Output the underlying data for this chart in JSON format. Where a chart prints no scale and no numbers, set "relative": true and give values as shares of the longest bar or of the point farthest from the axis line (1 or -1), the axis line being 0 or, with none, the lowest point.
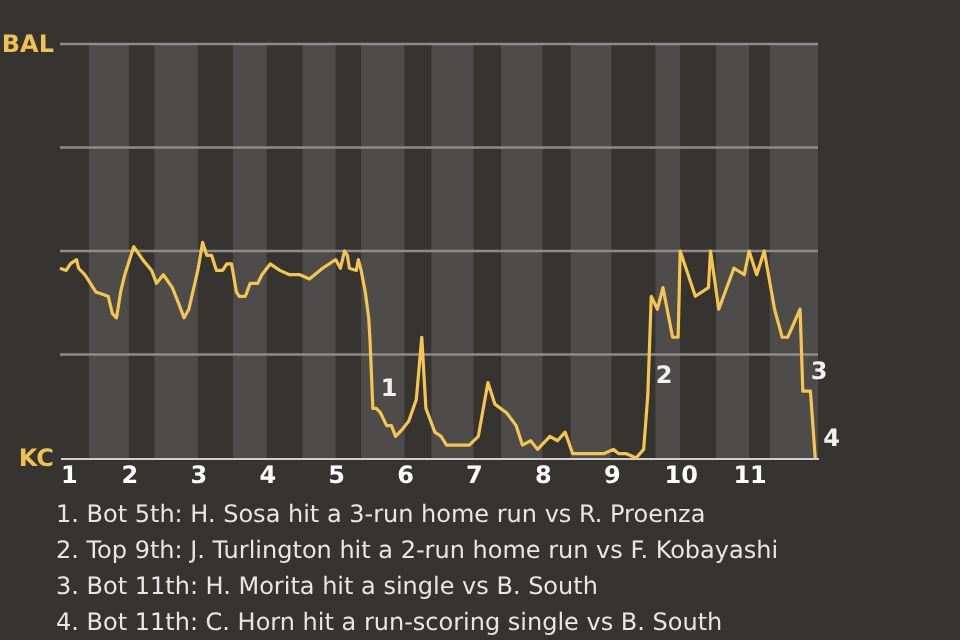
{
  "chart_data": {
    "type": "line",
    "relative": true,
    "xlim": [
      1,
      12
    ],
    "xticks": [
      1,
      2,
      3,
      4,
      5,
      6,
      7,
      8,
      9,
      10,
      11
    ],
    "ref_lines": [
      {
        "axis": "y",
        "value": 0.48,
        "color": "#8c8c8c"
      },
      {
        "axis": "y",
        "value": 0.96,
        "color": "#8c8c8c"
      },
      {
        "axis": "y",
        "value": 1.44,
        "color": "#8c8c8c"
      },
      {
        "axis": "y",
        "value": 1.92,
        "color": "#8c8c8c"
      }
    ],
    "marker": "none",
    "line_style": "solid",
    "series": [
      {
        "color": "#f5c451",
        "x": [
          1.0,
          1.09,
          1.15,
          1.24,
          1.27,
          1.36,
          1.52,
          1.7,
          1.76,
          1.82,
          1.88,
          1.94,
          2.07,
          2.2,
          2.33,
          2.4,
          2.5,
          2.63,
          2.73,
          2.8,
          2.87,
          3.0,
          3.07,
          3.13,
          3.2,
          3.27,
          3.36,
          3.42,
          3.49,
          3.56,
          3.6,
          3.69,
          3.76,
          3.87,
          3.93,
          4.05,
          4.19,
          4.33,
          4.48,
          4.62,
          4.81,
          5.0,
          5.07,
          5.13,
          5.17,
          5.2,
          5.3,
          5.33,
          5.37,
          5.43,
          5.48,
          5.5,
          5.54,
          5.59,
          5.65,
          5.74,
          5.81,
          5.87,
          5.96,
          6.06,
          6.17,
          6.25,
          6.31,
          6.44,
          6.53,
          6.61,
          6.94,
          7.07,
          7.21,
          7.31,
          7.48,
          7.62,
          7.71,
          7.83,
          7.93,
          8.11,
          8.22,
          8.33,
          8.44,
          8.67,
          8.89,
          9.03,
          9.11,
          9.22,
          9.36,
          9.47,
          9.53,
          9.58,
          9.67,
          9.75,
          9.89,
          9.97,
          10.0,
          10.22,
          10.41,
          10.44,
          10.56,
          10.78,
          10.93,
          11.0,
          11.11,
          11.22,
          11.37,
          11.48,
          11.56,
          11.74,
          11.78,
          11.89,
          11.96
        ],
        "values": [
          0.88,
          0.87,
          0.9,
          0.92,
          0.88,
          0.85,
          0.77,
          0.75,
          0.67,
          0.65,
          0.77,
          0.85,
          0.98,
          0.92,
          0.87,
          0.81,
          0.85,
          0.79,
          0.71,
          0.65,
          0.69,
          0.87,
          1,
          0.94,
          0.94,
          0.87,
          0.87,
          0.9,
          0.9,
          0.77,
          0.75,
          0.75,
          0.81,
          0.81,
          0.85,
          0.9,
          0.87,
          0.85,
          0.85,
          0.83,
          0.88,
          0.92,
          0.88,
          0.96,
          0.94,
          0.88,
          0.87,
          0.92,
          0.87,
          0.77,
          0.65,
          0.54,
          0.23,
          0.23,
          0.21,
          0.15,
          0.15,
          0.1,
          0.13,
          0.17,
          0.27,
          0.56,
          0.23,
          0.12,
          0.1,
          0.06,
          0.06,
          0.1,
          0.35,
          0.25,
          0.21,
          0.15,
          0.06,
          0.08,
          0.04,
          0.1,
          0.08,
          0.12,
          0.02,
          0.02,
          0.02,
          0.04,
          0.02,
          0.02,
          0,
          0.04,
          0.29,
          0.75,
          0.69,
          0.79,
          0.56,
          0.56,
          0.96,
          0.75,
          0.79,
          0.96,
          0.69,
          0.88,
          0.85,
          0.96,
          0.85,
          0.96,
          0.69,
          0.56,
          0.56,
          0.69,
          0.31,
          0.31,
          0
        ]
      }
    ],
    "bands": [
      {
        "axis": "x",
        "from": 1.42,
        "to": 2,
        "color": "#4d4c4a"
      },
      {
        "axis": "x",
        "from": 2.37,
        "to": 3,
        "color": "#4d4c4a"
      },
      {
        "axis": "x",
        "from": 3.51,
        "to": 4,
        "color": "#4d4c4a"
      },
      {
        "axis": "x",
        "from": 4.52,
        "to": 5,
        "color": "#4d4c4a"
      },
      {
        "axis": "x",
        "from": 5.37,
        "to": 6,
        "color": "#4d4c4a"
      },
      {
        "axis": "x",
        "from": 6.39,
        "to": 7,
        "color": "#4d4c4a"
      },
      {
        "axis": "x",
        "from": 7.4,
        "to": 8,
        "color": "#4d4c4a"
      },
      {
        "axis": "x",
        "from": 8.41,
        "to": 9,
        "color": "#4d4c4a"
      },
      {
        "axis": "x",
        "from": 9.64,
        "to": 10,
        "color": "#4d4c4a"
      },
      {
        "axis": "x",
        "from": 10.52,
        "to": 11,
        "color": "#4d4c4a"
      },
      {
        "axis": "x",
        "from": 11.3,
        "to": 12,
        "color": "#4d4c4a"
      }
    ],
    "annotations": [
      "BAL",
      "KC",
      {
        "text": "1",
        "x": 5.54,
        "y": 0.23
      },
      {
        "text": "2",
        "x": 9.53,
        "y": 0.29
      },
      {
        "text": "3",
        "x": 11.78,
        "y": 0.31
      },
      {
        "text": "4",
        "x": 11.96,
        "y": 0
      },
      "1. Bot 5th: H. Sosa hit a 3-run home run vs R. Proenza",
      "2. Top 9th: J. Turlington hit a 2-run home run vs F. Kobayashi",
      "3. Bot 11th: H. Morita hit a single vs B. South",
      "4. Bot 11th: C. Horn hit a run-scoring single vs B. South"
    ]
  }
}
